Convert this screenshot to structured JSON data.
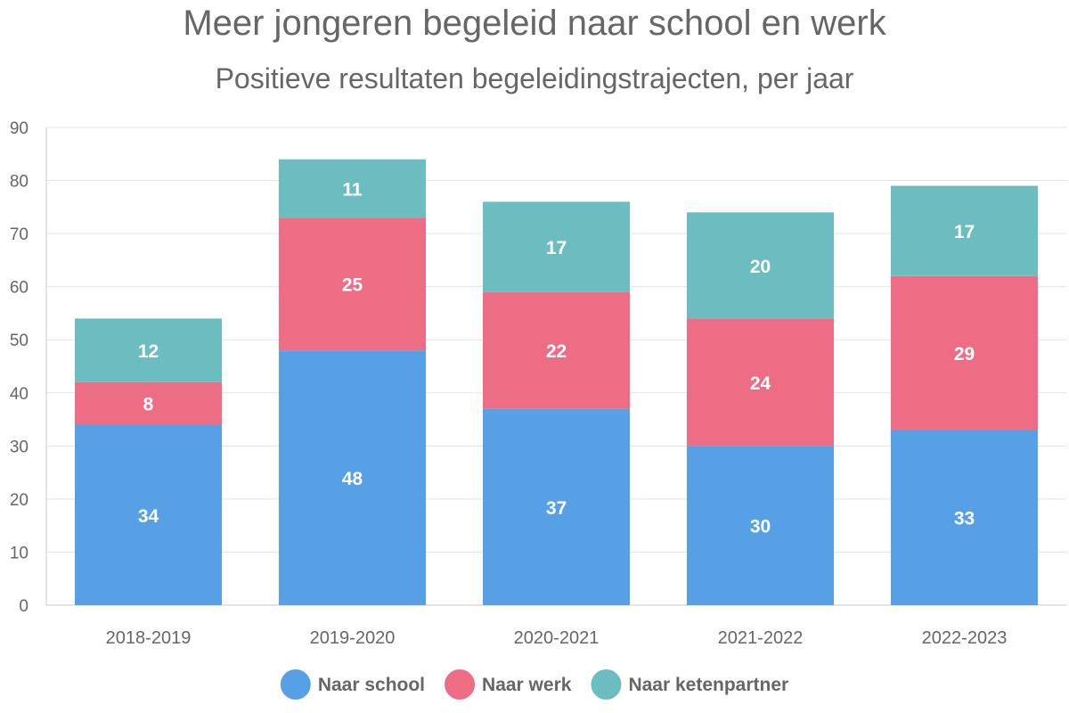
{
  "chart_data": {
    "type": "bar",
    "stacked": true,
    "title": "Meer jongeren begeleid naar school en werk",
    "subtitle": "Positieve resultaten begeleidingstrajecten, per jaar",
    "xlabel": "",
    "ylabel": "",
    "categories": [
      "2018-2019",
      "2019-2020",
      "2020-2021",
      "2021-2022",
      "2022-2023"
    ],
    "ylim": [
      0,
      90
    ],
    "yticks": [
      0,
      10,
      20,
      30,
      40,
      50,
      60,
      70,
      80,
      90
    ],
    "grid": true,
    "legend_position": "bottom",
    "series": [
      {
        "name": "Naar school",
        "color": "#57A0E5",
        "values": [
          34,
          48,
          37,
          30,
          33
        ]
      },
      {
        "name": "Naar werk",
        "color": "#ED6D85",
        "values": [
          8,
          25,
          22,
          24,
          29
        ]
      },
      {
        "name": "Naar ketenpartner",
        "color": "#6CBDBF",
        "values": [
          12,
          11,
          17,
          20,
          17
        ]
      }
    ]
  }
}
